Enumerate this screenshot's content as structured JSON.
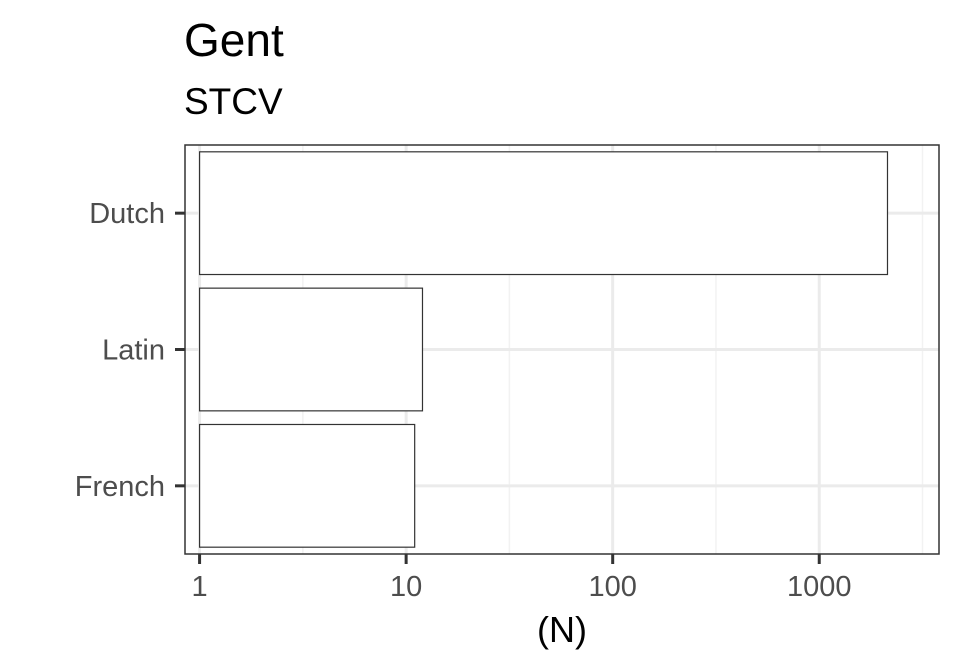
{
  "chart_data": {
    "type": "bar",
    "orientation": "horizontal",
    "title": "Gent",
    "subtitle": "STCV",
    "xlabel": "(N)",
    "ylabel": "",
    "x_scale": "log10",
    "xlim": [
      0.85,
      3800
    ],
    "x_ticks": [
      1,
      10,
      100,
      1000
    ],
    "x_tick_labels": [
      "1",
      "10",
      "100",
      "1000"
    ],
    "categories": [
      "Dutch",
      "Latin",
      "French"
    ],
    "values": [
      2140,
      12,
      11
    ],
    "bar_base": 1,
    "grid": true,
    "legend": "none",
    "colors": {
      "bar_fill": "#ffffff",
      "bar_stroke": "#333333",
      "panel_border": "#333333",
      "grid_major": "#ebebeb",
      "grid_minor": "#f2f2f2",
      "tick_label": "#4d4d4d",
      "title": "#000000"
    }
  }
}
